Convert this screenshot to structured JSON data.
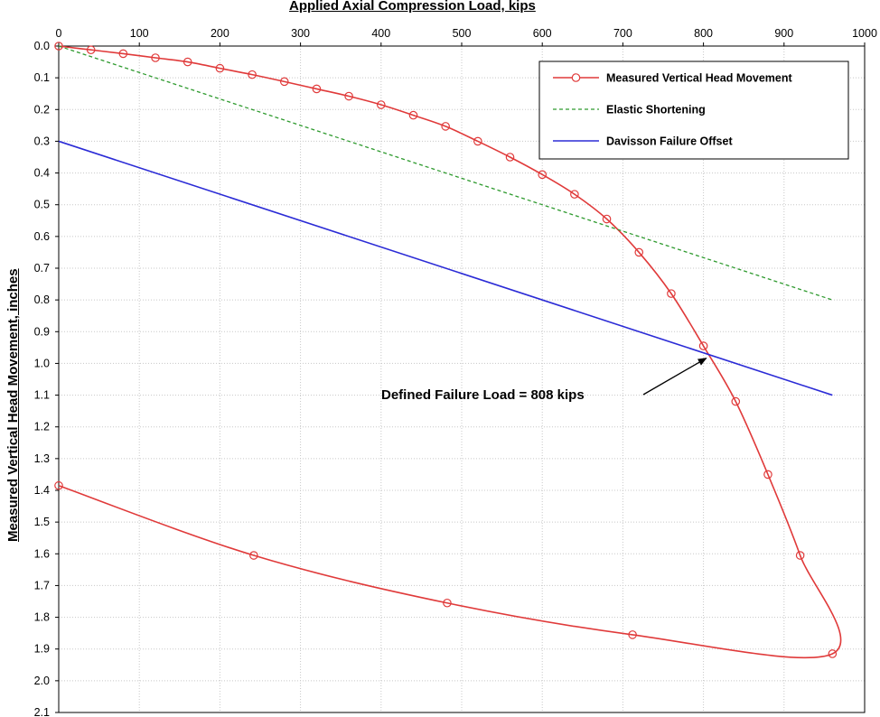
{
  "chart_data": {
    "type": "line",
    "title": "",
    "xlabel": "Applied Axial Compression Load, kips",
    "ylabel": "Measured Vertical Head Movement, inches",
    "xlim": [
      0,
      1000
    ],
    "ylim": [
      0.0,
      2.1
    ],
    "x_axis_position": "top",
    "y_axis_inverted": true,
    "x_ticks": [
      "0",
      "100",
      "200",
      "300",
      "400",
      "500",
      "600",
      "700",
      "800",
      "900",
      "1000"
    ],
    "y_ticks": [
      "0.0",
      "0.1",
      "0.2",
      "0.3",
      "0.4",
      "0.5",
      "0.6",
      "0.7",
      "0.8",
      "0.9",
      "1.0",
      "1.1",
      "1.2",
      "1.3",
      "1.4",
      "1.5",
      "1.6",
      "1.7",
      "1.8",
      "1.9",
      "2.0",
      "2.1"
    ],
    "grid": true,
    "legend_position": "top-right",
    "series": [
      {
        "name": "Measured Vertical Head Movement",
        "color": "#e03a3a",
        "style": "solid",
        "marker": "open-circle",
        "x": [
          0,
          40,
          80,
          120,
          160,
          200,
          240,
          280,
          320,
          360,
          400,
          440,
          480,
          520,
          560,
          600,
          640,
          680,
          720,
          760,
          800,
          840,
          880,
          920,
          960,
          712,
          482,
          242,
          0
        ],
        "y": [
          0.0,
          0.012,
          0.024,
          0.037,
          0.05,
          0.07,
          0.09,
          0.112,
          0.135,
          0.158,
          0.185,
          0.218,
          0.253,
          0.3,
          0.35,
          0.405,
          0.467,
          0.545,
          0.65,
          0.78,
          0.945,
          1.12,
          1.35,
          1.605,
          1.915,
          1.855,
          1.755,
          1.605,
          1.385
        ]
      },
      {
        "name": "Elastic Shortening",
        "color": "#2e9a2e",
        "style": "dashed",
        "x": [
          0,
          960
        ],
        "y": [
          0.0,
          0.8
        ]
      },
      {
        "name": "Davisson Failure Offset",
        "color": "#2b2bd6",
        "style": "solid",
        "x": [
          0,
          960
        ],
        "y": [
          0.3,
          1.1
        ]
      }
    ],
    "annotations": [
      {
        "text": "Defined Failure Load = 808 kips",
        "arrow_to": [
          808,
          0.975
        ]
      }
    ]
  }
}
